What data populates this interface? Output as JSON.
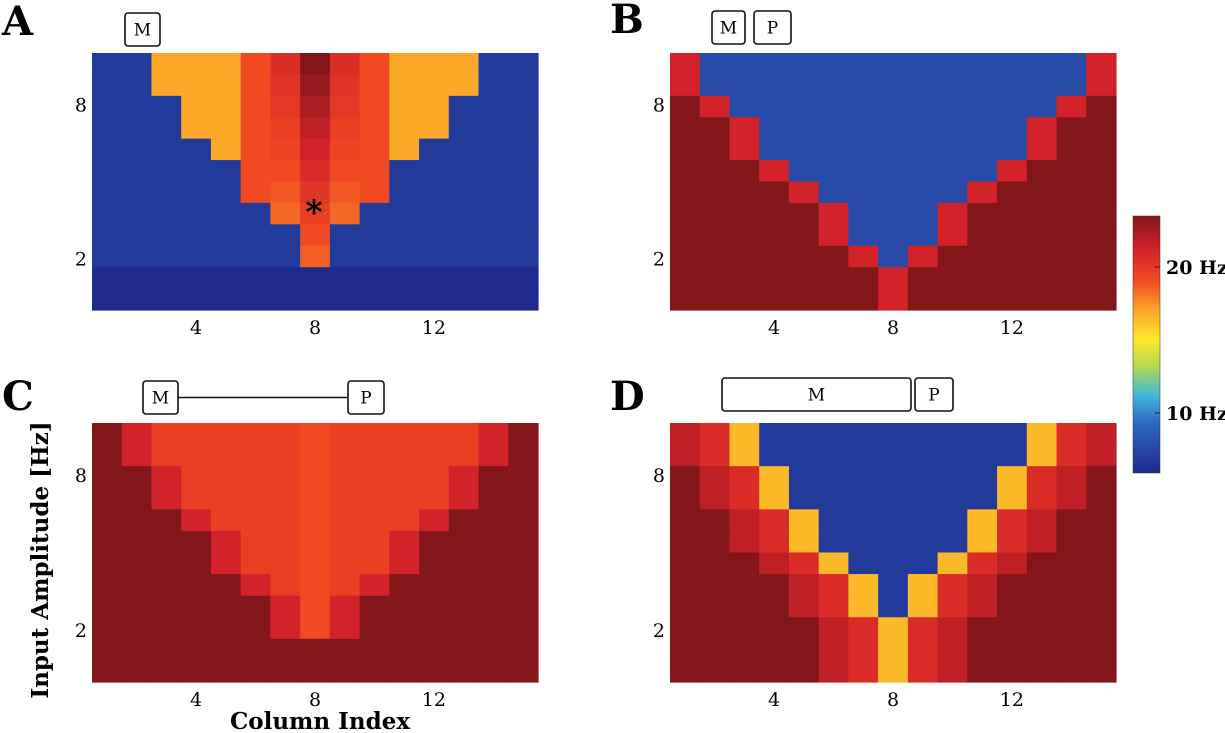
{
  "figure": {
    "ylabel": "Input Amplitude [Hz]",
    "xlabel": "Column Index",
    "colorbar": {
      "tick_labels": [
        "20 Hz",
        "10 Hz"
      ],
      "tick_values": [
        20,
        10
      ],
      "range": [
        7,
        23
      ]
    },
    "colors": {
      "background_low": "#27308c",
      "background_high": "#821618",
      "colormap": [
        "#1e2a8c",
        "#2f6bc0",
        "#3fb7dc",
        "#b9d94a",
        "#fde82b",
        "#fca929",
        "#f04a22",
        "#d2232a",
        "#821618"
      ]
    }
  },
  "chart_data": [
    {
      "type": "heatmap",
      "panel": "A",
      "boxes": [
        "M"
      ],
      "connector": false,
      "marker": "*",
      "x_ticks": [
        4,
        8,
        12
      ],
      "y_ticks": [
        8,
        2
      ],
      "xlim": [
        0.5,
        15.5
      ],
      "ylim": [
        0,
        10
      ],
      "grid": false,
      "description_values": "firing rate [Hz] per column (1-15) and input amplitude; cone-shaped response centred at column 8"
    },
    {
      "type": "heatmap",
      "panel": "B",
      "boxes": [
        "M",
        "P"
      ],
      "connector": false,
      "x_ticks": [
        4,
        8,
        12
      ],
      "y_ticks": [
        8,
        2
      ],
      "xlim": [
        0.5,
        15.5
      ],
      "ylim": [
        0,
        10
      ],
      "grid": false
    },
    {
      "type": "heatmap",
      "panel": "C",
      "boxes": [
        "M",
        "P"
      ],
      "connector": true,
      "x_ticks": [
        4,
        8,
        12
      ],
      "y_ticks": [
        8,
        2
      ],
      "xlim": [
        0.5,
        15.5
      ],
      "ylim": [
        0,
        10
      ],
      "grid": false
    },
    {
      "type": "heatmap",
      "panel": "D",
      "boxes": [
        "M",
        "P"
      ],
      "connector": false,
      "x_ticks": [
        4,
        8,
        12
      ],
      "y_ticks": [
        8,
        2
      ],
      "xlim": [
        0.5,
        15.5
      ],
      "ylim": [
        0,
        10
      ],
      "grid": false
    }
  ]
}
